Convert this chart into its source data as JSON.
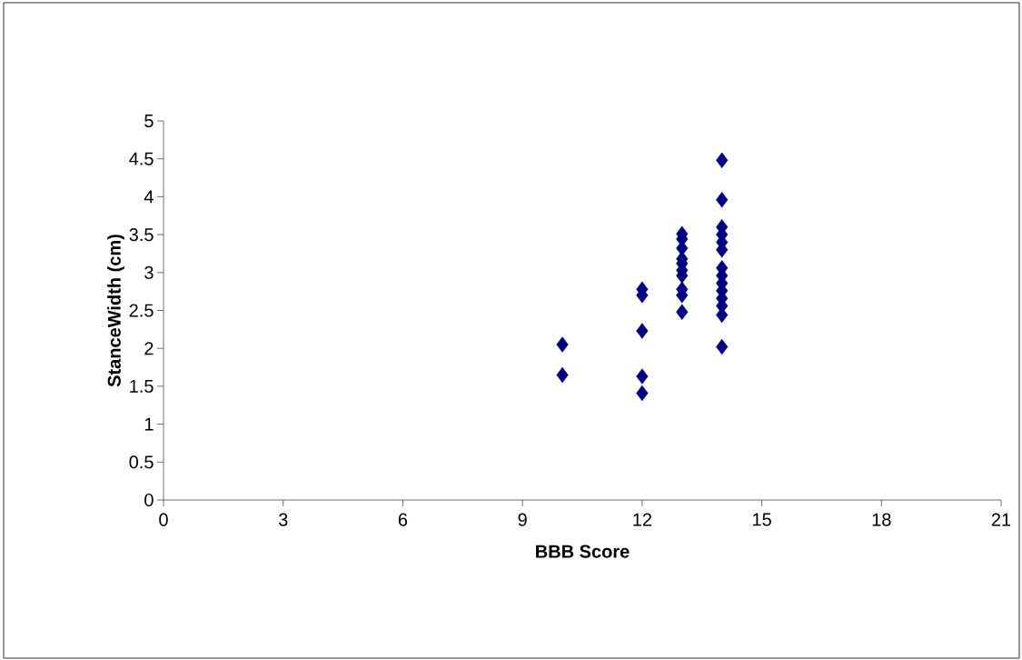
{
  "chart_data": {
    "type": "scatter",
    "xlabel": "BBB Score",
    "ylabel": "StanceWidth (cm)",
    "marker": "diamond",
    "grid": false,
    "series": [
      {
        "color": "#000080",
        "x": [
          10,
          10,
          12,
          12,
          12,
          12,
          12,
          13,
          13,
          13,
          13,
          13,
          13,
          13,
          13,
          13,
          13,
          14,
          14,
          14,
          14,
          14,
          14,
          14,
          14,
          14,
          14,
          14,
          14,
          14,
          14
        ],
        "values": [
          2.05,
          1.65,
          2.78,
          2.7,
          2.23,
          1.63,
          1.41,
          3.51,
          3.44,
          3.32,
          3.18,
          3.12,
          3.03,
          2.96,
          2.78,
          2.7,
          2.48,
          4.48,
          3.96,
          3.6,
          3.5,
          3.4,
          3.3,
          3.06,
          2.96,
          2.86,
          2.76,
          2.66,
          2.56,
          2.44,
          2.02
        ]
      }
    ],
    "xlim": [
      0,
      21
    ],
    "xticks": [
      0,
      3,
      6,
      9,
      12,
      15,
      18,
      21
    ],
    "ylim": [
      0,
      5
    ],
    "yticks": [
      0,
      0.5,
      1,
      1.5,
      2,
      2.5,
      3,
      3.5,
      4,
      4.5,
      5
    ]
  }
}
